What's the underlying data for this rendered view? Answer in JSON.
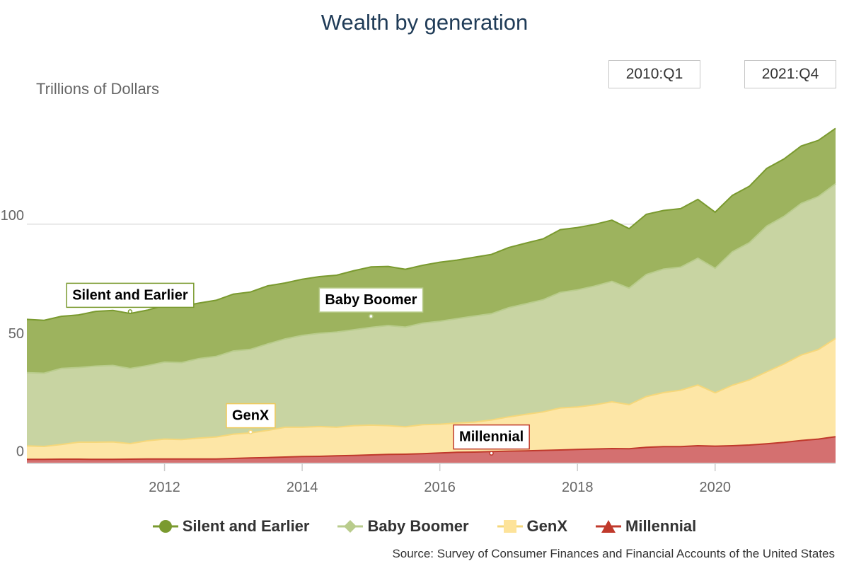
{
  "chart_data": {
    "type": "area",
    "stacked": true,
    "title": "Wealth by generation",
    "ylabel": "Trillions of Dollars",
    "source": "Survey of Consumer Finances and Financial Accounts of the United States",
    "range_selector": {
      "start": "2010:Q1",
      "end": "2021:Q4"
    },
    "xlim": [
      2010.0,
      2021.75
    ],
    "ylim": [
      -1,
      150
    ],
    "x_ticks": [
      2012,
      2014,
      2016,
      2018,
      2020
    ],
    "y_ticks": [
      0,
      50,
      100
    ],
    "grid": true,
    "legend_position": "bottom",
    "x": [
      2010.0,
      2010.25,
      2010.5,
      2010.75,
      2011.0,
      2011.25,
      2011.5,
      2011.75,
      2012.0,
      2012.25,
      2012.5,
      2012.75,
      2013.0,
      2013.25,
      2013.5,
      2013.75,
      2014.0,
      2014.25,
      2014.5,
      2014.75,
      2015.0,
      2015.25,
      2015.5,
      2015.75,
      2016.0,
      2016.25,
      2016.5,
      2016.75,
      2017.0,
      2017.25,
      2017.5,
      2017.75,
      2018.0,
      2018.25,
      2018.5,
      2018.75,
      2019.0,
      2019.25,
      2019.5,
      2019.75,
      2020.0,
      2020.25,
      2020.5,
      2020.75,
      2021.0,
      2021.25,
      2021.5,
      2021.75
    ],
    "series": [
      {
        "name": "Millennial",
        "color": "#c0392b",
        "fill": "#d47070",
        "values": [
          0.4,
          0.4,
          0.5,
          0.5,
          0.4,
          0.4,
          0.5,
          0.6,
          0.6,
          0.6,
          0.6,
          0.6,
          0.8,
          1.0,
          1.2,
          1.4,
          1.6,
          1.7,
          1.9,
          2.1,
          2.3,
          2.5,
          2.6,
          2.8,
          3.1,
          3.4,
          3.5,
          3.7,
          3.9,
          4.0,
          4.2,
          4.4,
          4.6,
          4.8,
          5.0,
          4.9,
          5.5,
          5.8,
          5.8,
          6.2,
          6.0,
          6.2,
          6.5,
          7.0,
          7.6,
          8.4,
          9.0,
          10.0
        ]
      },
      {
        "name": "GenX",
        "color": "#f5d77a",
        "fill": "#fde6a6",
        "values": [
          5.7,
          5.5,
          6.2,
          7.2,
          7.3,
          7.4,
          6.6,
          7.7,
          8.4,
          8.2,
          8.8,
          9.3,
          10.3,
          10.6,
          11.5,
          12.6,
          12.4,
          12.6,
          12.1,
          12.6,
          12.6,
          12.2,
          11.6,
          12.3,
          12.2,
          12.4,
          12.7,
          13.4,
          14.5,
          15.5,
          16.3,
          17.8,
          18.0,
          18.7,
          19.8,
          18.7,
          21.5,
          22.9,
          23.9,
          25.7,
          22.6,
          25.6,
          27.6,
          30.5,
          33.2,
          36.2,
          37.9,
          41.6
        ]
      },
      {
        "name": "Baby Boomer",
        "color": "#b9cc8c",
        "fill": "#c8d4a2",
        "values": [
          31.0,
          31.0,
          32.2,
          31.6,
          32.2,
          32.4,
          31.8,
          31.8,
          32.6,
          32.6,
          33.7,
          34.1,
          35.2,
          35.4,
          36.6,
          37.4,
          38.9,
          39.5,
          40.3,
          40.6,
          41.4,
          42.4,
          42.2,
          43.0,
          43.6,
          44.2,
          44.9,
          45.0,
          46.2,
          46.8,
          47.5,
          48.9,
          49.6,
          50.3,
          51.0,
          49.3,
          51.7,
          52.3,
          52.1,
          53.7,
          52.7,
          56.5,
          58.1,
          61.7,
          62.5,
          64.2,
          64.8,
          65.5
        ]
      },
      {
        "name": "Silent and Earlier",
        "color": "#7a9a2f",
        "fill": "#9db35e",
        "values": [
          22.6,
          22.4,
          22.1,
          22.3,
          23.2,
          23.3,
          23.3,
          23.5,
          24.1,
          23.8,
          23.5,
          23.8,
          24.1,
          24.3,
          24.6,
          23.7,
          23.8,
          24.0,
          24.1,
          25.0,
          25.6,
          25.0,
          24.5,
          24.5,
          25.0,
          24.8,
          24.9,
          25.1,
          25.5,
          25.7,
          25.8,
          26.6,
          26.4,
          26.1,
          25.9,
          25.2,
          25.5,
          24.8,
          24.8,
          24.9,
          23.8,
          23.9,
          23.9,
          24.4,
          24.3,
          24.3,
          23.8,
          23.5
        ]
      }
    ],
    "annotations": [
      {
        "text": "Silent and Earlier",
        "series": "Silent and Earlier",
        "x": 2011.5,
        "y": 63
      },
      {
        "text": "Baby Boomer",
        "series": "Baby Boomer",
        "x": 2015.0,
        "y": 61
      },
      {
        "text": "GenX",
        "series": "GenX",
        "x": 2013.25,
        "y": 12
      },
      {
        "text": "Millennial",
        "series": "Millennial",
        "x": 2016.75,
        "y": 3
      }
    ]
  }
}
